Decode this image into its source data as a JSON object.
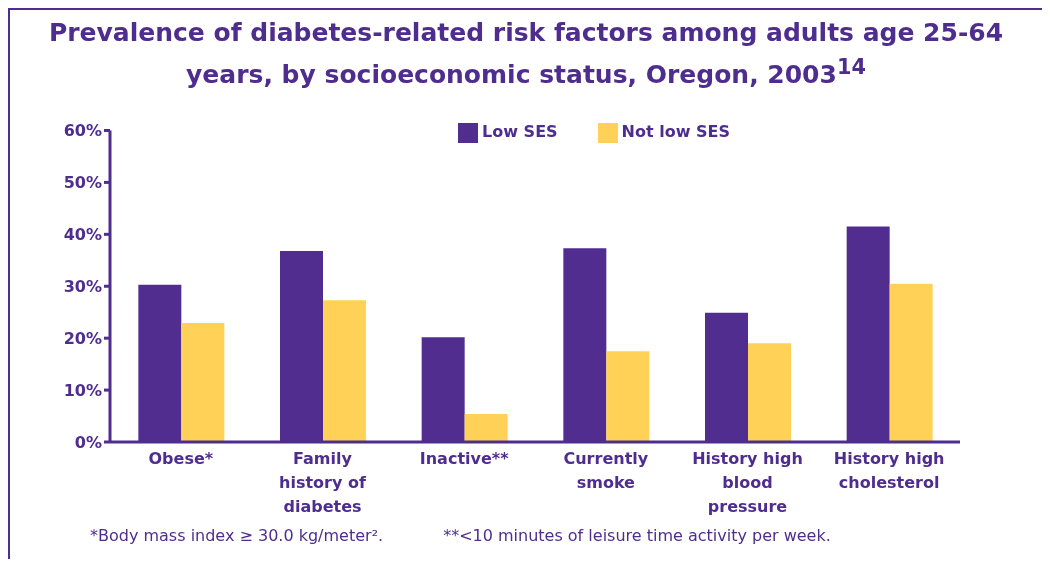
{
  "chart_data": {
    "type": "bar",
    "title": "Prevalence of diabetes-related risk factors among adults age 25-64 years, by socioeconomic status, Oregon, 2003$^{14}$",
    "categories": [
      "Obese*",
      "Family history of diabetes",
      "Inactive**",
      "Currently smoke",
      "History high blood pressure",
      "History high cholesterol"
    ],
    "series": [
      {
        "name": "Low SES",
        "color": "#512d8f",
        "values": [
          30.3,
          36.8,
          20.2,
          37.3,
          24.9,
          41.5
        ]
      },
      {
        "name": "Not low SES",
        "color": "#ffd257",
        "values": [
          22.9,
          27.3,
          5.4,
          17.5,
          19.0,
          30.5
        ]
      }
    ],
    "ylim": [
      0,
      60
    ],
    "yticks": [
      {
        "value": 0,
        "label": "0%"
      },
      {
        "value": 10,
        "label": "10%"
      },
      {
        "value": 20,
        "label": "20%"
      },
      {
        "value": 30,
        "label": "30%"
      },
      {
        "value": 40,
        "label": "40%"
      },
      {
        "value": 50,
        "label": "50%"
      },
      {
        "value": 60,
        "label": "60%"
      }
    ],
    "grid": false,
    "legend": "top right",
    "annotations": [
      "*Body mass index ≥ 30.0 kg/meter².",
      "**<10 minutes of leisure time activity per week."
    ]
  }
}
